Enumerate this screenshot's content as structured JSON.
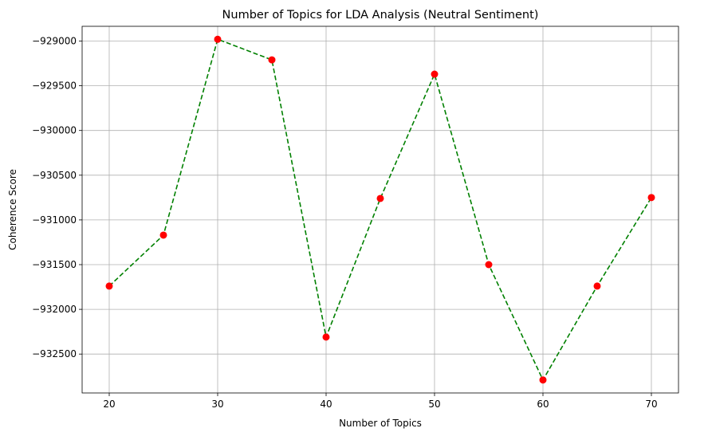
{
  "chart_data": {
    "type": "line",
    "title": "Number of Topics for LDA Analysis (Neutral Sentiment)",
    "xlabel": "Number of Topics",
    "ylabel": "Coherence Score",
    "x": [
      20,
      25,
      30,
      35,
      40,
      45,
      50,
      55,
      60,
      65,
      70
    ],
    "series": [
      {
        "values": [
          -931740,
          -931170,
          -928980,
          -929210,
          -932310,
          -930760,
          -929370,
          -931500,
          -932790,
          -931740,
          -930750
        ],
        "line_color": "#008000",
        "line_style": "dashed",
        "marker_color": "#ff0000",
        "marker": "circle"
      }
    ],
    "x_ticks": [
      20,
      30,
      40,
      50,
      60,
      70
    ],
    "y_ticks": [
      -932500,
      -932000,
      -931500,
      -931000,
      -930500,
      -930000,
      -929500,
      -929000
    ],
    "xlim": [
      17.5,
      72.5
    ],
    "ylim": [
      -932935,
      -928835
    ],
    "grid": true,
    "legend": false
  }
}
